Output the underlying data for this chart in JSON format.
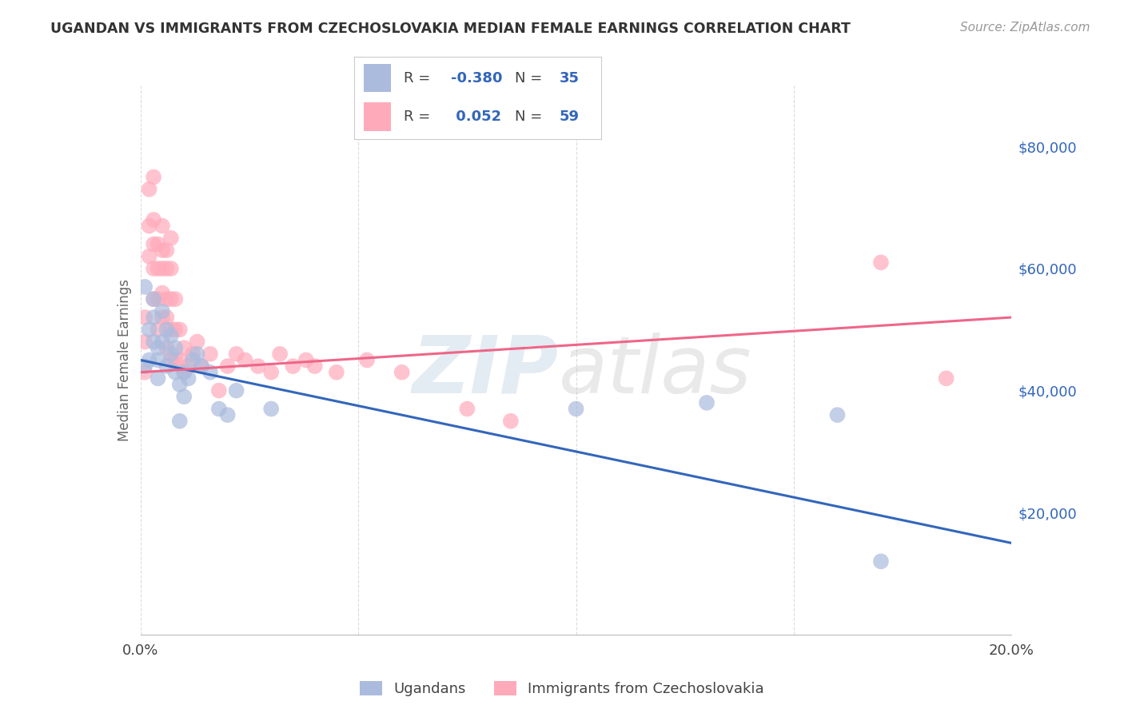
{
  "title": "UGANDAN VS IMMIGRANTS FROM CZECHOSLOVAKIA MEDIAN FEMALE EARNINGS CORRELATION CHART",
  "source": "Source: ZipAtlas.com",
  "ylabel": "Median Female Earnings",
  "xlim": [
    0.0,
    0.2
  ],
  "ylim": [
    0,
    90000
  ],
  "yticks": [
    0,
    20000,
    40000,
    60000,
    80000
  ],
  "ytick_labels": [
    "",
    "$20,000",
    "$40,000",
    "$60,000",
    "$80,000"
  ],
  "xticks": [
    0.0,
    0.05,
    0.1,
    0.15,
    0.2
  ],
  "xtick_labels": [
    "0.0%",
    "",
    "",
    "",
    "20.0%"
  ],
  "background_color": "#ffffff",
  "grid_color": "#cccccc",
  "blue_color": "#aabbdd",
  "pink_color": "#ffaabb",
  "blue_line_color": "#3366bb",
  "pink_line_color": "#ee6688",
  "legend_label1": "Ugandans",
  "legend_label2": "Immigrants from Czechoslovakia",
  "blue_line_y0": 45000,
  "blue_line_y1": 15000,
  "pink_line_y0": 43000,
  "pink_line_y1": 52000,
  "ugandan_x": [
    0.001,
    0.001,
    0.002,
    0.002,
    0.003,
    0.003,
    0.003,
    0.004,
    0.004,
    0.004,
    0.005,
    0.005,
    0.006,
    0.006,
    0.007,
    0.007,
    0.008,
    0.008,
    0.009,
    0.009,
    0.01,
    0.01,
    0.011,
    0.012,
    0.013,
    0.014,
    0.016,
    0.018,
    0.02,
    0.022,
    0.03,
    0.1,
    0.13,
    0.16,
    0.17
  ],
  "ugandan_y": [
    44000,
    57000,
    45000,
    50000,
    48000,
    52000,
    55000,
    45000,
    42000,
    47000,
    48000,
    53000,
    44000,
    50000,
    46000,
    49000,
    43000,
    47000,
    35000,
    41000,
    39000,
    43000,
    42000,
    45000,
    46000,
    44000,
    43000,
    37000,
    36000,
    40000,
    37000,
    37000,
    38000,
    36000,
    12000
  ],
  "czech_x": [
    0.001,
    0.001,
    0.001,
    0.002,
    0.002,
    0.002,
    0.003,
    0.003,
    0.003,
    0.003,
    0.003,
    0.004,
    0.004,
    0.004,
    0.004,
    0.005,
    0.005,
    0.005,
    0.005,
    0.005,
    0.006,
    0.006,
    0.006,
    0.006,
    0.006,
    0.007,
    0.007,
    0.007,
    0.007,
    0.007,
    0.008,
    0.008,
    0.008,
    0.009,
    0.009,
    0.01,
    0.01,
    0.011,
    0.012,
    0.013,
    0.014,
    0.016,
    0.018,
    0.02,
    0.022,
    0.024,
    0.027,
    0.03,
    0.032,
    0.035,
    0.038,
    0.04,
    0.045,
    0.052,
    0.06,
    0.075,
    0.085,
    0.17,
    0.185
  ],
  "czech_y": [
    43000,
    48000,
    52000,
    62000,
    67000,
    73000,
    55000,
    60000,
    64000,
    68000,
    75000,
    50000,
    55000,
    60000,
    64000,
    52000,
    56000,
    60000,
    63000,
    67000,
    47000,
    52000,
    55000,
    60000,
    63000,
    45000,
    50000,
    55000,
    60000,
    65000,
    45000,
    50000,
    55000,
    45000,
    50000,
    43000,
    47000,
    44000,
    46000,
    48000,
    44000,
    46000,
    40000,
    44000,
    46000,
    45000,
    44000,
    43000,
    46000,
    44000,
    45000,
    44000,
    43000,
    45000,
    43000,
    37000,
    35000,
    61000,
    42000
  ]
}
